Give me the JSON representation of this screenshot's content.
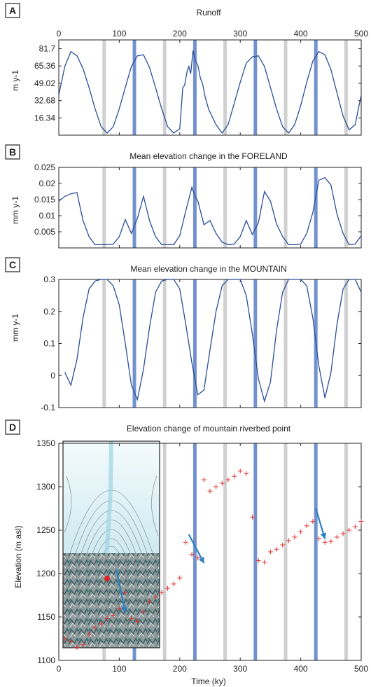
{
  "chart_data": [
    {
      "panel_label": "A",
      "type": "line",
      "title": "Runoff",
      "ylabel": "m y-1",
      "xlabel": "",
      "xlim": [
        0,
        500
      ],
      "ylim": [
        0,
        90
      ],
      "x_ticks": [
        0,
        100,
        200,
        300,
        400,
        500
      ],
      "x_tick_position": "top",
      "y_ticks": [
        16.34,
        32.68,
        49.02,
        65.36,
        81.7
      ],
      "y_tick_labels": [
        "16.34",
        "32.68",
        "49.02",
        "65.36",
        "81.7"
      ],
      "series": [
        {
          "color": "#2b4c9a",
          "x": [
            0,
            10,
            20,
            30,
            40,
            50,
            60,
            70,
            80,
            90,
            100,
            110,
            120,
            130,
            140,
            150,
            160,
            170,
            180,
            190,
            200,
            205,
            208,
            212,
            215,
            218,
            222,
            226,
            230,
            234,
            238,
            242,
            248,
            260,
            270,
            280,
            290,
            300,
            310,
            320,
            330,
            340,
            350,
            360,
            370,
            380,
            390,
            400,
            410,
            420,
            430,
            440,
            450,
            460,
            470,
            480,
            490,
            500
          ],
          "y": [
            38,
            65,
            79,
            75,
            63,
            45,
            25,
            8,
            2,
            8,
            25,
            45,
            65,
            75,
            76,
            64,
            45,
            25,
            8,
            2,
            6,
            45,
            47,
            60,
            65,
            58,
            80,
            70,
            66,
            54,
            48,
            36,
            24,
            10,
            2,
            10,
            30,
            50,
            68,
            74,
            75,
            65,
            45,
            25,
            8,
            2,
            10,
            28,
            50,
            70,
            79,
            76,
            62,
            40,
            18,
            5,
            10,
            38
          ]
        }
      ]
    },
    {
      "panel_label": "B",
      "type": "line",
      "title": "Mean elevation change in the FORELAND",
      "ylabel": "mm y-1",
      "xlabel": "",
      "xlim": [
        0,
        500
      ],
      "ylim": [
        0,
        0.025
      ],
      "y_ticks": [
        0.005,
        0.01,
        0.015,
        0.02,
        0.025
      ],
      "y_tick_labels": [
        "0.005",
        "0.01",
        "0.015",
        "0.02",
        "0.025"
      ],
      "series": [
        {
          "color": "#2b4c9a",
          "x": [
            0,
            10,
            20,
            30,
            40,
            50,
            60,
            70,
            80,
            90,
            100,
            110,
            120,
            130,
            140,
            150,
            160,
            170,
            180,
            190,
            200,
            210,
            220,
            225,
            230,
            240,
            250,
            260,
            270,
            280,
            290,
            300,
            310,
            320,
            330,
            340,
            350,
            360,
            370,
            380,
            390,
            400,
            410,
            420,
            430,
            440,
            450,
            460,
            470,
            480,
            490,
            500
          ],
          "y": [
            0.0145,
            0.016,
            0.0168,
            0.0172,
            0.0085,
            0.0035,
            0.001,
            0.001,
            0.001,
            0.0012,
            0.0035,
            0.0088,
            0.0045,
            0.0092,
            0.016,
            0.0085,
            0.0035,
            0.001,
            0.001,
            0.001,
            0.0038,
            0.0115,
            0.0188,
            0.0162,
            0.0145,
            0.0072,
            0.0085,
            0.0045,
            0.0018,
            0.001,
            0.0012,
            0.0035,
            0.0085,
            0.0042,
            0.0078,
            0.0175,
            0.0145,
            0.0075,
            0.0035,
            0.001,
            0.001,
            0.0012,
            0.0045,
            0.011,
            0.021,
            0.0218,
            0.0195,
            0.0105,
            0.0045,
            0.001,
            0.0012,
            0.0038
          ]
        }
      ]
    },
    {
      "panel_label": "C",
      "type": "line",
      "title": "Mean elevation change in the MOUNTAIN",
      "ylabel": "mm y-1",
      "xlabel": "",
      "xlim": [
        0,
        500
      ],
      "ylim": [
        -0.1,
        0.3
      ],
      "y_ticks": [
        -0.1,
        0,
        0.1,
        0.2,
        0.3
      ],
      "y_tick_labels": [
        "-0.1",
        "0",
        "0.1",
        "0.2",
        "0.3"
      ],
      "series": [
        {
          "color": "#2b4c9a",
          "x": [
            10,
            20,
            30,
            40,
            50,
            60,
            70,
            80,
            90,
            100,
            110,
            120,
            130,
            140,
            150,
            160,
            170,
            180,
            190,
            200,
            210,
            220,
            230,
            240,
            250,
            260,
            270,
            280,
            290,
            300,
            310,
            320,
            330,
            340,
            350,
            360,
            370,
            380,
            390,
            400,
            410,
            420,
            430,
            440,
            450,
            460,
            470,
            480,
            490,
            500
          ],
          "y": [
            0.01,
            -0.03,
            0.05,
            0.18,
            0.27,
            0.295,
            0.3,
            0.3,
            0.28,
            0.22,
            0.1,
            -0.03,
            -0.075,
            0.02,
            0.15,
            0.26,
            0.295,
            0.3,
            0.3,
            0.27,
            0.16,
            0.04,
            -0.06,
            -0.045,
            0.08,
            0.2,
            0.28,
            0.3,
            0.3,
            0.3,
            0.25,
            0.13,
            -0.01,
            -0.08,
            -0.02,
            0.14,
            0.26,
            0.3,
            0.3,
            0.3,
            0.28,
            0.18,
            0.03,
            -0.07,
            0.01,
            0.16,
            0.27,
            0.3,
            0.3,
            0.26
          ]
        }
      ]
    },
    {
      "panel_label": "D",
      "type": "scatter",
      "title": "Elevation change of mountain riverbed point",
      "ylabel": "Elevation (m asl)",
      "xlabel": "Time (ky)",
      "xlim": [
        0,
        500
      ],
      "ylim": [
        1100,
        1350
      ],
      "x_ticks": [
        0,
        100,
        200,
        300,
        400,
        500
      ],
      "y_ticks": [
        1100,
        1150,
        1200,
        1250,
        1300,
        1350
      ],
      "series": [
        {
          "color": "#e03030",
          "marker": "+",
          "x": [
            10,
            20,
            30,
            40,
            50,
            60,
            70,
            80,
            90,
            100,
            110,
            120,
            130,
            140,
            150,
            160,
            170,
            180,
            190,
            200,
            210,
            220,
            230,
            240,
            250,
            260,
            270,
            280,
            290,
            300,
            310,
            320,
            330,
            340,
            350,
            360,
            370,
            380,
            390,
            400,
            410,
            420,
            430,
            440,
            450,
            460,
            470,
            480,
            490,
            500
          ],
          "y": [
            1125,
            1122,
            1115,
            1118,
            1130,
            1138,
            1142,
            1148,
            1152,
            1160,
            1178,
            1148,
            1145,
            1156,
            1168,
            1173,
            1178,
            1183,
            1188,
            1195,
            1236,
            1222,
            1218,
            1308,
            1295,
            1300,
            1304,
            1308,
            1312,
            1318,
            1315,
            1265,
            1215,
            1213,
            1225,
            1228,
            1233,
            1238,
            1242,
            1248,
            1255,
            1260,
            1240,
            1236,
            1237,
            1242,
            1246,
            1250,
            1254,
            1260
          ]
        }
      ],
      "arrows_color": "#2b7fc4"
    }
  ],
  "vertical_bands": {
    "blue": [
      125,
      225,
      325,
      425
    ],
    "gray": [
      75,
      175,
      275,
      375,
      475
    ],
    "blue_color": "#5b7fc4",
    "gray_color": "#d0d0d0"
  },
  "arrows_d": [
    {
      "x": [
        95,
        110
      ],
      "y": [
        1205,
        1155
      ]
    },
    {
      "x": [
        215,
        240
      ],
      "y": [
        1245,
        1212
      ]
    },
    {
      "x": [
        425,
        440
      ],
      "y": [
        1275,
        1240
      ]
    }
  ]
}
